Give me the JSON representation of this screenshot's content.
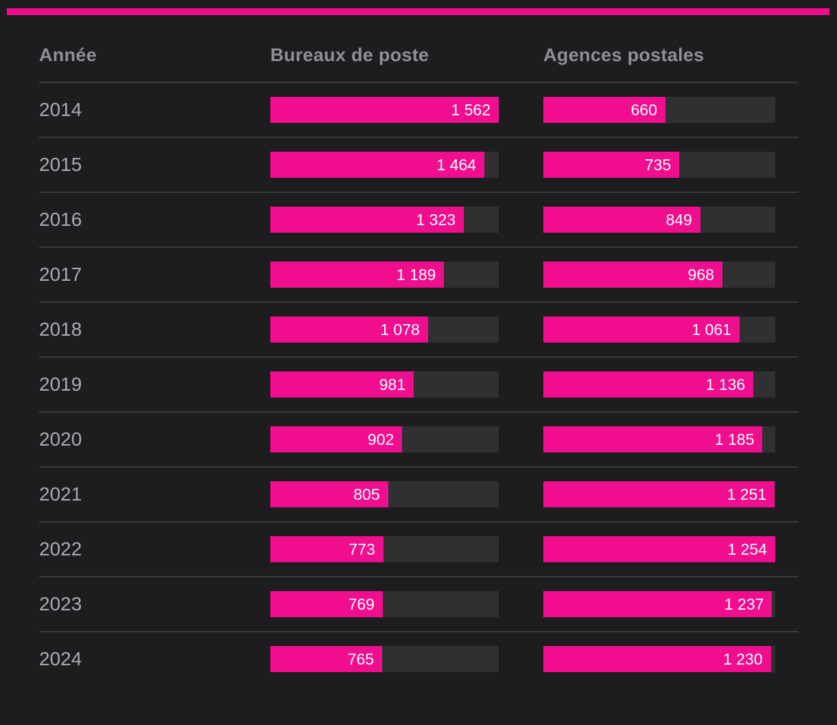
{
  "theme": {
    "bg": "#1d1d20",
    "accent": "#f00d8e",
    "track": "#303033",
    "separator": "#3a3a3d",
    "header_text": "#909094",
    "year_text": "#ababaf",
    "value_text": "#ffffff"
  },
  "table": {
    "columns": [
      {
        "key": "year",
        "label": "Année"
      },
      {
        "key": "bureaux",
        "label": "Bureaux de poste",
        "max": 1562
      },
      {
        "key": "agences",
        "label": "Agences postales",
        "max": 1254
      }
    ],
    "rows": [
      {
        "year": "2014",
        "bureaux": 1562,
        "bureaux_label": "1 562",
        "agences": 660,
        "agences_label": "660"
      },
      {
        "year": "2015",
        "bureaux": 1464,
        "bureaux_label": "1 464",
        "agences": 735,
        "agences_label": "735"
      },
      {
        "year": "2016",
        "bureaux": 1323,
        "bureaux_label": "1 323",
        "agences": 849,
        "agences_label": "849"
      },
      {
        "year": "2017",
        "bureaux": 1189,
        "bureaux_label": "1 189",
        "agences": 968,
        "agences_label": "968"
      },
      {
        "year": "2018",
        "bureaux": 1078,
        "bureaux_label": "1 078",
        "agences": 1061,
        "agences_label": "1 061"
      },
      {
        "year": "2019",
        "bureaux": 981,
        "bureaux_label": "981",
        "agences": 1136,
        "agences_label": "1 136"
      },
      {
        "year": "2020",
        "bureaux": 902,
        "bureaux_label": "902",
        "agences": 1185,
        "agences_label": "1 185"
      },
      {
        "year": "2021",
        "bureaux": 805,
        "bureaux_label": "805",
        "agences": 1251,
        "agences_label": "1 251"
      },
      {
        "year": "2022",
        "bureaux": 773,
        "bureaux_label": "773",
        "agences": 1254,
        "agences_label": "1 254"
      },
      {
        "year": "2023",
        "bureaux": 769,
        "bureaux_label": "769",
        "agences": 1237,
        "agences_label": "1 237"
      },
      {
        "year": "2024",
        "bureaux": 765,
        "bureaux_label": "765",
        "agences": 1230,
        "agences_label": "1 230"
      }
    ]
  },
  "chart_data": {
    "type": "bar",
    "orientation": "horizontal",
    "categories": [
      "2014",
      "2015",
      "2016",
      "2017",
      "2018",
      "2019",
      "2020",
      "2021",
      "2022",
      "2023",
      "2024"
    ],
    "series": [
      {
        "name": "Bureaux de poste",
        "values": [
          1562,
          1464,
          1323,
          1189,
          1078,
          981,
          902,
          805,
          773,
          769,
          765
        ]
      },
      {
        "name": "Agences postales",
        "values": [
          660,
          735,
          849,
          968,
          1061,
          1136,
          1185,
          1251,
          1254,
          1237,
          1230
        ]
      }
    ],
    "title": "",
    "xlabel": "",
    "ylabel": "Année",
    "value_format": "space thousands separator (fr)",
    "legend_position": "column headers",
    "grid": false,
    "scale_note": "each series column scaled independently to its own max",
    "series_axis_max": [
      1562,
      1254
    ],
    "bar_color": "#f00d8e",
    "track_color": "#303033"
  }
}
